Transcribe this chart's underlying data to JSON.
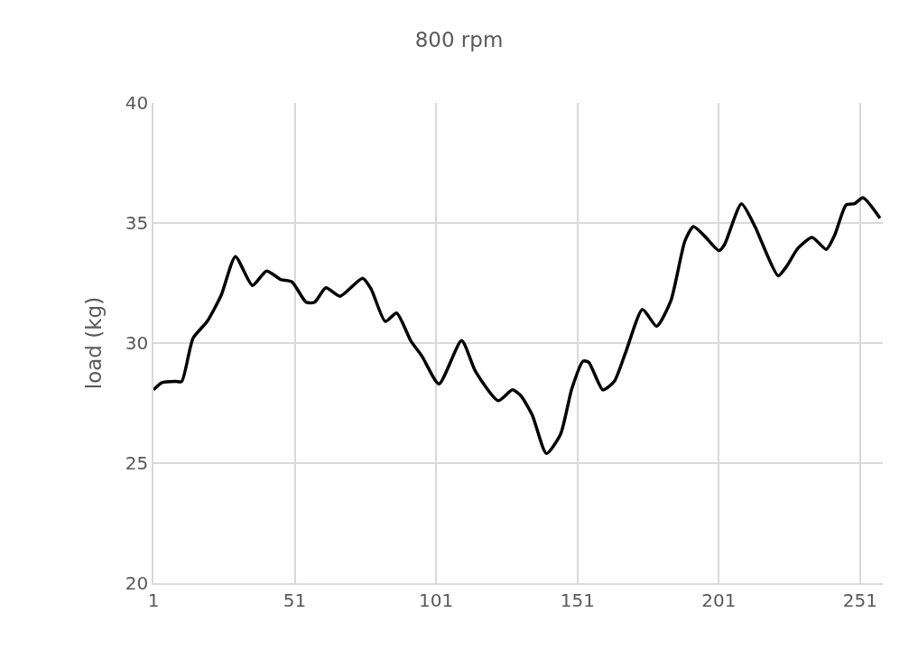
{
  "chart_data": {
    "type": "line",
    "title": "800 rpm",
    "ylabel": "load (kg)",
    "x": [
      1,
      4,
      9,
      11,
      15,
      20,
      25,
      30,
      36,
      41,
      46,
      50,
      55,
      58,
      62,
      67,
      75,
      78,
      83,
      87,
      92,
      96,
      102,
      110,
      115,
      123,
      128,
      131,
      135,
      140,
      145,
      149,
      153,
      155,
      160,
      164,
      168,
      174,
      179,
      184,
      189,
      192,
      196,
      201,
      203,
      209,
      214,
      216,
      222,
      225,
      229,
      234,
      239,
      242,
      246,
      249,
      252,
      258
    ],
    "series": [
      {
        "color": "#000000",
        "values": [
          28.05,
          28.35,
          28.4,
          28.4,
          30.2,
          30.9,
          32.0,
          33.6,
          32.4,
          33.0,
          32.65,
          32.55,
          31.7,
          31.7,
          32.3,
          31.95,
          32.7,
          32.25,
          30.9,
          31.25,
          30.1,
          29.45,
          28.3,
          30.1,
          28.8,
          27.6,
          28.05,
          27.8,
          27.0,
          25.4,
          26.2,
          28.1,
          29.25,
          29.2,
          28.05,
          28.4,
          29.6,
          31.4,
          30.7,
          31.75,
          34.25,
          34.85,
          34.45,
          33.85,
          34.1,
          35.8,
          34.8,
          34.25,
          32.8,
          33.2,
          33.95,
          34.4,
          33.9,
          34.5,
          35.75,
          35.8,
          36.05,
          35.2
        ]
      }
    ],
    "xlim": [
      1,
      259
    ],
    "xticks": [
      1,
      51,
      101,
      151,
      201,
      251
    ],
    "ylim": [
      20,
      40
    ],
    "yticks": [
      20,
      25,
      30,
      35,
      40
    ],
    "grid": true,
    "legend": false,
    "marker": "none",
    "line_style": "solid"
  }
}
